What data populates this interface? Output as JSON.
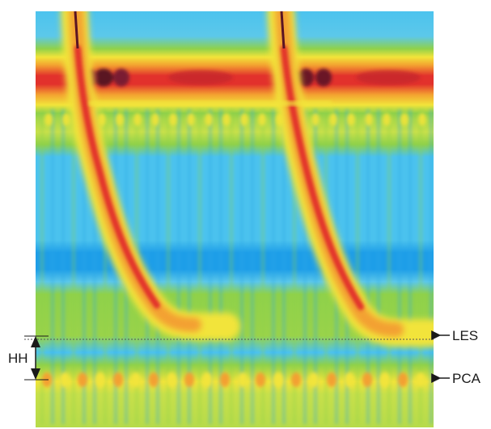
{
  "labels": {
    "les": "LES",
    "pca": "PCA",
    "hh": "HH"
  },
  "colors": {
    "background_green": "#8fd14a",
    "blue_band": "#1e9ee8",
    "cyan": "#4fc3f0",
    "yellow": "#f4e83a",
    "orange": "#f39a2a",
    "red": "#e2312c",
    "dark": "#5a1424",
    "marker_line": "#222222"
  }
}
